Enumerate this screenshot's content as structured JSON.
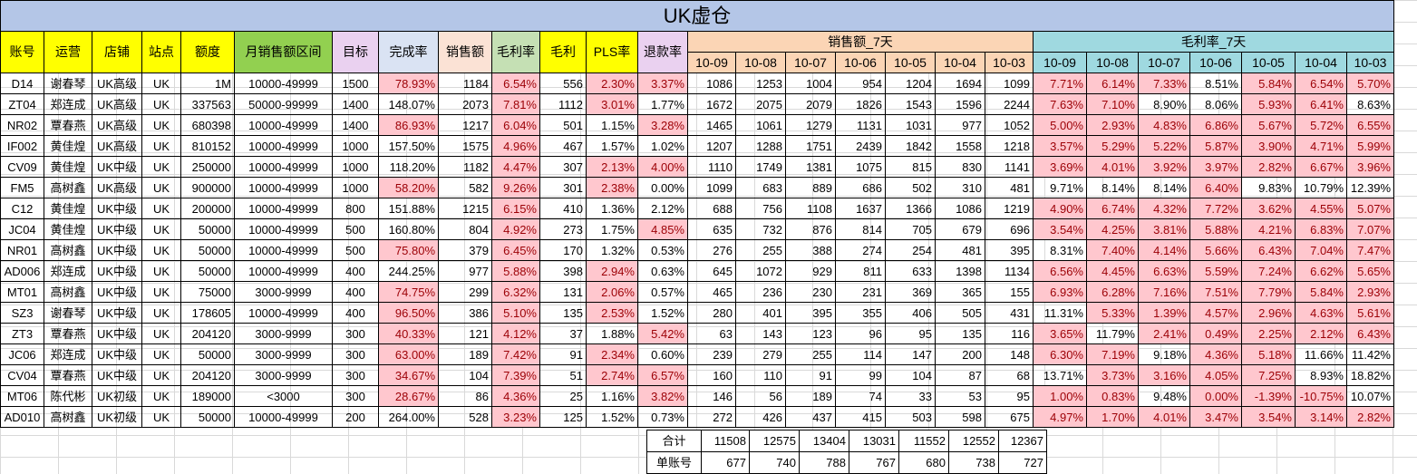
{
  "title": "UK虚仓",
  "headers": {
    "account": "账号",
    "operator": "运营",
    "store": "店铺",
    "site": "站点",
    "quota": "额度",
    "monthly_range": "月销售额区间",
    "target": "目标",
    "completion": "完成率",
    "sales": "销售额",
    "margin_rate": "毛利率",
    "margin": "毛利",
    "pls_rate": "PLS率",
    "refund_rate": "退款率",
    "sales_7d": "销售额_7天",
    "margin_7d": "毛利率_7天"
  },
  "dates": [
    "10-09",
    "10-08",
    "10-07",
    "10-06",
    "10-05",
    "10-04",
    "10-03"
  ],
  "colors": {
    "title_bg": "#b4c6e7",
    "yellow": "#ffff00",
    "green": "#92d050",
    "highlight_bg": "#ffc7ce",
    "highlight_fg": "#9c0006"
  },
  "rows": [
    {
      "account": "D14",
      "operator": "谢春琴",
      "store": "UK高级",
      "site": "UK",
      "quota": "1M",
      "range": "10000-49999",
      "target": "1500",
      "completion": "78.93%",
      "sales": "1184",
      "margin_rate": "6.54%",
      "margin": "556",
      "pls": "2.30%",
      "refund": "3.37%",
      "s7": [
        "1086",
        "1253",
        "1004",
        "954",
        "1204",
        "1694",
        "1099"
      ],
      "m7": [
        "7.71%",
        "6.14%",
        "7.33%",
        "8.51%",
        "5.84%",
        "6.54%",
        "5.70%"
      ]
    },
    {
      "account": "ZT04",
      "operator": "郑连成",
      "store": "UK高级",
      "site": "UK",
      "quota": "337563",
      "range": "50000-99999",
      "target": "1400",
      "completion": "148.07%",
      "sales": "2073",
      "margin_rate": "7.81%",
      "margin": "1112",
      "pls": "3.01%",
      "refund": "1.77%",
      "s7": [
        "1672",
        "2075",
        "2079",
        "1826",
        "1543",
        "1596",
        "2244"
      ],
      "m7": [
        "7.63%",
        "7.10%",
        "8.90%",
        "8.06%",
        "5.93%",
        "6.41%",
        "8.63%"
      ]
    },
    {
      "account": "NR02",
      "operator": "覃春燕",
      "store": "UK高级",
      "site": "UK",
      "quota": "680398",
      "range": "10000-49999",
      "target": "1400",
      "completion": "86.93%",
      "sales": "1217",
      "margin_rate": "6.04%",
      "margin": "501",
      "pls": "1.15%",
      "refund": "3.28%",
      "s7": [
        "1465",
        "1061",
        "1279",
        "1131",
        "1031",
        "977",
        "1052"
      ],
      "m7": [
        "5.00%",
        "2.93%",
        "4.83%",
        "6.86%",
        "5.67%",
        "5.72%",
        "6.55%"
      ]
    },
    {
      "account": "IF002",
      "operator": "黄佳煌",
      "store": "UK高级",
      "site": "UK",
      "quota": "810152",
      "range": "10000-49999",
      "target": "1000",
      "completion": "157.50%",
      "sales": "1575",
      "margin_rate": "4.96%",
      "margin": "467",
      "pls": "1.57%",
      "refund": "1.02%",
      "s7": [
        "1207",
        "1288",
        "1751",
        "2439",
        "1842",
        "1558",
        "1218"
      ],
      "m7": [
        "3.57%",
        "5.29%",
        "5.22%",
        "5.87%",
        "3.90%",
        "4.71%",
        "5.99%"
      ]
    },
    {
      "account": "CV09",
      "operator": "黄佳煌",
      "store": "UK中级",
      "site": "UK",
      "quota": "250000",
      "range": "10000-49999",
      "target": "1000",
      "completion": "118.20%",
      "sales": "1182",
      "margin_rate": "4.47%",
      "margin": "307",
      "pls": "2.13%",
      "refund": "4.00%",
      "s7": [
        "1110",
        "1749",
        "1381",
        "1075",
        "815",
        "830",
        "1141"
      ],
      "m7": [
        "3.69%",
        "4.01%",
        "3.92%",
        "3.97%",
        "2.82%",
        "6.67%",
        "3.96%"
      ]
    },
    {
      "account": "FM5",
      "operator": "高树鑫",
      "store": "UK高级",
      "site": "UK",
      "quota": "900000",
      "range": "10000-49999",
      "target": "1000",
      "completion": "58.20%",
      "sales": "582",
      "margin_rate": "9.26%",
      "margin": "301",
      "pls": "2.38%",
      "refund": "0.00%",
      "s7": [
        "1099",
        "683",
        "889",
        "686",
        "502",
        "310",
        "481"
      ],
      "m7": [
        "9.71%",
        "8.14%",
        "8.14%",
        "6.40%",
        "9.83%",
        "10.79%",
        "12.39%"
      ]
    },
    {
      "account": "C12",
      "operator": "黄佳煌",
      "store": "UK中级",
      "site": "UK",
      "quota": "200000",
      "range": "10000-49999",
      "target": "800",
      "completion": "151.88%",
      "sales": "1215",
      "margin_rate": "6.15%",
      "margin": "410",
      "pls": "1.36%",
      "refund": "2.12%",
      "s7": [
        "688",
        "756",
        "1108",
        "1637",
        "1366",
        "1086",
        "1219"
      ],
      "m7": [
        "4.90%",
        "6.74%",
        "4.32%",
        "7.72%",
        "3.62%",
        "4.55%",
        "5.07%"
      ]
    },
    {
      "account": "JC04",
      "operator": "黄佳煌",
      "store": "UK中级",
      "site": "UK",
      "quota": "50000",
      "range": "10000-49999",
      "target": "500",
      "completion": "160.80%",
      "sales": "804",
      "margin_rate": "4.92%",
      "margin": "273",
      "pls": "1.75%",
      "refund": "4.85%",
      "s7": [
        "635",
        "732",
        "876",
        "814",
        "705",
        "679",
        "696"
      ],
      "m7": [
        "3.54%",
        "4.25%",
        "3.81%",
        "5.88%",
        "4.21%",
        "6.83%",
        "7.07%"
      ]
    },
    {
      "account": "NR01",
      "operator": "高树鑫",
      "store": "UK中级",
      "site": "UK",
      "quota": "50000",
      "range": "10000-49999",
      "target": "500",
      "completion": "75.80%",
      "sales": "379",
      "margin_rate": "6.45%",
      "margin": "170",
      "pls": "1.32%",
      "refund": "0.53%",
      "s7": [
        "276",
        "255",
        "388",
        "274",
        "254",
        "481",
        "395"
      ],
      "m7": [
        "8.31%",
        "7.40%",
        "4.14%",
        "5.66%",
        "6.43%",
        "7.04%",
        "7.47%"
      ]
    },
    {
      "account": "AD006",
      "operator": "郑连成",
      "store": "UK中级",
      "site": "UK",
      "quota": "50000",
      "range": "10000-49999",
      "target": "400",
      "completion": "244.25%",
      "sales": "977",
      "margin_rate": "5.88%",
      "margin": "398",
      "pls": "2.94%",
      "refund": "0.63%",
      "s7": [
        "645",
        "1072",
        "929",
        "811",
        "633",
        "1398",
        "1134"
      ],
      "m7": [
        "6.56%",
        "4.45%",
        "6.63%",
        "5.59%",
        "7.24%",
        "6.62%",
        "5.65%"
      ]
    },
    {
      "account": "MT01",
      "operator": "高树鑫",
      "store": "UK中级",
      "site": "UK",
      "quota": "75000",
      "range": "3000-9999",
      "target": "400",
      "completion": "74.75%",
      "sales": "299",
      "margin_rate": "6.32%",
      "margin": "131",
      "pls": "2.06%",
      "refund": "0.57%",
      "s7": [
        "465",
        "236",
        "230",
        "231",
        "369",
        "365",
        "155"
      ],
      "m7": [
        "6.93%",
        "6.28%",
        "7.16%",
        "7.51%",
        "7.79%",
        "5.84%",
        "2.93%"
      ]
    },
    {
      "account": "SZ3",
      "operator": "谢春琴",
      "store": "UK中级",
      "site": "UK",
      "quota": "178605",
      "range": "10000-49999",
      "target": "400",
      "completion": "96.50%",
      "sales": "386",
      "margin_rate": "5.10%",
      "margin": "135",
      "pls": "2.53%",
      "refund": "1.52%",
      "s7": [
        "280",
        "401",
        "395",
        "355",
        "406",
        "505",
        "431"
      ],
      "m7": [
        "11.31%",
        "5.33%",
        "1.39%",
        "4.57%",
        "2.96%",
        "4.63%",
        "5.61%"
      ]
    },
    {
      "account": "ZT3",
      "operator": "覃春燕",
      "store": "UK中级",
      "site": "UK",
      "quota": "204120",
      "range": "3000-9999",
      "target": "300",
      "completion": "40.33%",
      "sales": "121",
      "margin_rate": "4.12%",
      "margin": "37",
      "pls": "1.88%",
      "refund": "5.42%",
      "s7": [
        "63",
        "143",
        "123",
        "96",
        "95",
        "135",
        "116"
      ],
      "m7": [
        "3.65%",
        "11.79%",
        "2.41%",
        "0.49%",
        "2.25%",
        "2.12%",
        "6.43%"
      ]
    },
    {
      "account": "JC06",
      "operator": "郑连成",
      "store": "UK中级",
      "site": "UK",
      "quota": "50000",
      "range": "3000-9999",
      "target": "300",
      "completion": "63.00%",
      "sales": "189",
      "margin_rate": "7.42%",
      "margin": "91",
      "pls": "2.34%",
      "refund": "0.60%",
      "s7": [
        "239",
        "279",
        "255",
        "114",
        "147",
        "200",
        "148"
      ],
      "m7": [
        "6.30%",
        "7.19%",
        "9.18%",
        "4.36%",
        "5.18%",
        "11.66%",
        "11.42%"
      ]
    },
    {
      "account": "CV04",
      "operator": "覃春燕",
      "store": "UK中级",
      "site": "UK",
      "quota": "204120",
      "range": "3000-9999",
      "target": "300",
      "completion": "34.67%",
      "sales": "104",
      "margin_rate": "7.39%",
      "margin": "51",
      "pls": "2.74%",
      "refund": "6.57%",
      "s7": [
        "160",
        "110",
        "91",
        "99",
        "104",
        "87",
        "68"
      ],
      "m7": [
        "13.71%",
        "3.73%",
        "3.16%",
        "4.05%",
        "7.25%",
        "8.93%",
        "18.82%"
      ]
    },
    {
      "account": "MT06",
      "operator": "陈代彬",
      "store": "UK初级",
      "site": "UK",
      "quota": "189000",
      "range": "<3000",
      "target": "300",
      "completion": "28.67%",
      "sales": "86",
      "margin_rate": "4.36%",
      "margin": "25",
      "pls": "1.16%",
      "refund": "3.82%",
      "s7": [
        "146",
        "56",
        "189",
        "74",
        "33",
        "53",
        "95"
      ],
      "m7": [
        "1.00%",
        "0.83%",
        "9.48%",
        "0.00%",
        "-1.39%",
        "-10.75%",
        "10.07%"
      ]
    },
    {
      "account": "AD010",
      "operator": "高树鑫",
      "store": "UK初级",
      "site": "UK",
      "quota": "50000",
      "range": "10000-49999",
      "target": "200",
      "completion": "264.00%",
      "sales": "528",
      "margin_rate": "3.23%",
      "margin": "125",
      "pls": "1.52%",
      "refund": "0.73%",
      "s7": [
        "272",
        "426",
        "437",
        "415",
        "503",
        "598",
        "675"
      ],
      "m7": [
        "4.97%",
        "1.70%",
        "4.01%",
        "3.47%",
        "3.54%",
        "3.14%",
        "2.82%"
      ]
    }
  ],
  "totals": {
    "sum_label": "合计",
    "sum": [
      "11508",
      "12575",
      "13404",
      "13031",
      "11552",
      "12552",
      "12367"
    ],
    "single_label": "单账号",
    "single": [
      "677",
      "740",
      "788",
      "767",
      "680",
      "738",
      "727"
    ]
  }
}
